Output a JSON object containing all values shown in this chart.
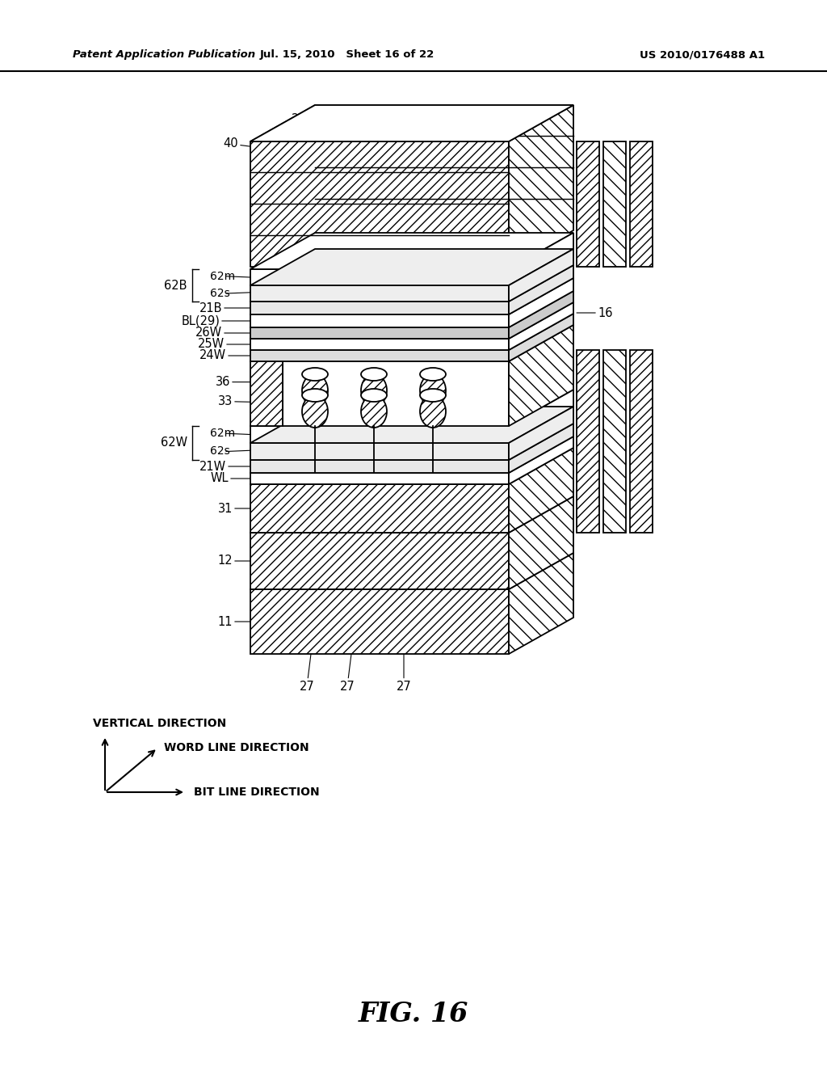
{
  "header_left": "Patent Application Publication",
  "header_mid": "Jul. 15, 2010   Sheet 16 of 22",
  "header_right": "US 2010/0176488 A1",
  "figure_label": "FIG. 16",
  "bg_color": "#ffffff",
  "lc": "#000000",
  "axis_labels": {
    "vertical": "VERTICAL DIRECTION",
    "word_line": "WORD LINE DIRECTION",
    "bit_line": "BIT LINE DIRECTION"
  }
}
